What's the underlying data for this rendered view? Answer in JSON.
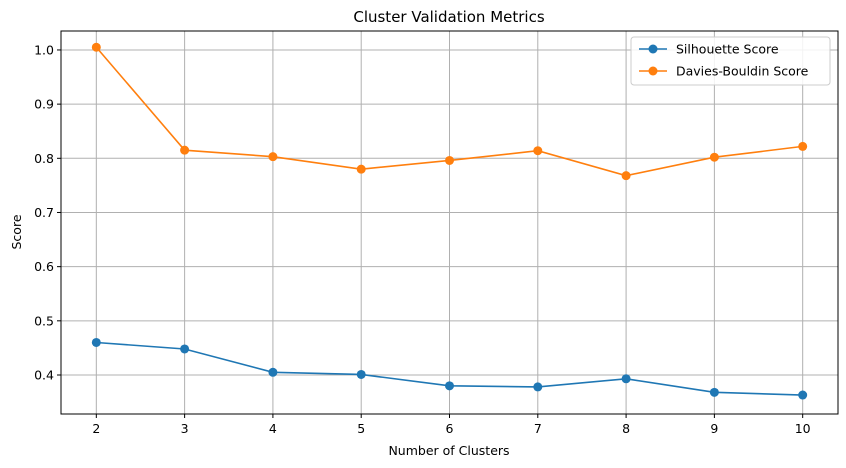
{
  "chart_data": {
    "type": "line",
    "title": "Cluster Validation Metrics",
    "xlabel": "Number of Clusters",
    "ylabel": "Score",
    "x": [
      2,
      3,
      4,
      5,
      6,
      7,
      8,
      9,
      10
    ],
    "xlim": [
      1.6,
      10.4
    ],
    "ylim": [
      0.328,
      1.035
    ],
    "yticks": [
      0.4,
      0.5,
      0.6,
      0.7,
      0.8,
      0.9,
      1.0
    ],
    "ytick_labels": [
      "0.4",
      "0.5",
      "0.6",
      "0.7",
      "0.8",
      "0.9",
      "1.0"
    ],
    "grid": true,
    "legend_position": "top-right",
    "series": [
      {
        "name": "Silhouette Score",
        "color": "#1f77b4",
        "values": [
          0.46,
          0.448,
          0.405,
          0.401,
          0.38,
          0.378,
          0.393,
          0.368,
          0.363
        ]
      },
      {
        "name": "Davies-Bouldin Score",
        "color": "#ff7f0e",
        "values": [
          1.005,
          0.815,
          0.803,
          0.78,
          0.796,
          0.814,
          0.768,
          0.802,
          0.822
        ]
      }
    ]
  }
}
